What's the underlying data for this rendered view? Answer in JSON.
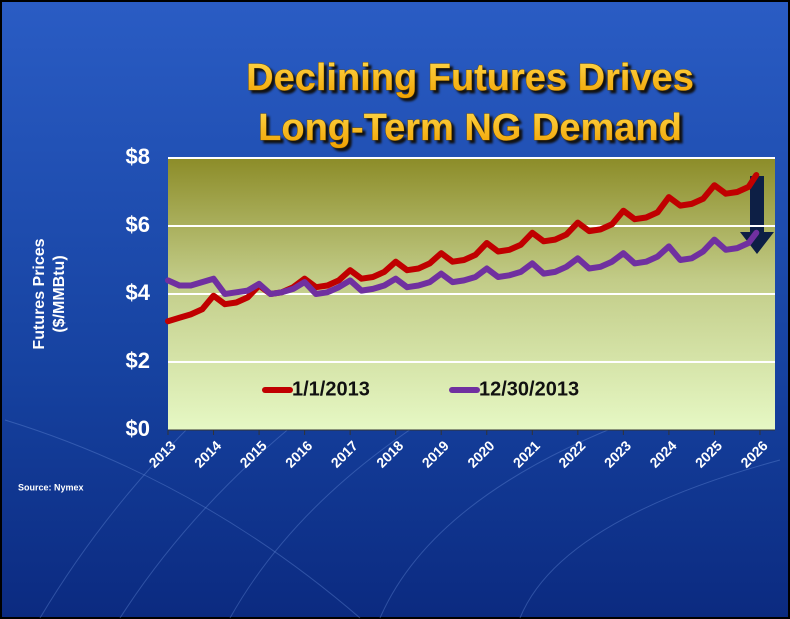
{
  "chart_data": {
    "type": "line",
    "title": [
      "Declining Futures Drives",
      "Long-Term NG Demand"
    ],
    "ylabel": [
      "Futures Prices",
      "($/MMBtu)"
    ],
    "source": "Source:  Nymex",
    "x": [
      2013,
      2013.25,
      2013.5,
      2013.75,
      2014,
      2014.25,
      2014.5,
      2014.75,
      2015,
      2015.25,
      2015.5,
      2015.75,
      2016,
      2016.25,
      2016.5,
      2016.75,
      2017,
      2017.25,
      2017.5,
      2017.75,
      2018,
      2018.25,
      2018.5,
      2018.75,
      2019,
      2019.25,
      2019.5,
      2019.75,
      2020,
      2020.25,
      2020.5,
      2020.75,
      2021,
      2021.25,
      2021.5,
      2021.75,
      2022,
      2022.25,
      2022.5,
      2022.75,
      2023,
      2023.25,
      2023.5,
      2023.75,
      2024,
      2024.25,
      2024.5,
      2024.75,
      2025,
      2025.25,
      2025.5,
      2025.75,
      2025.92
    ],
    "series": [
      {
        "name": "1/1/2013",
        "color": "#c00000",
        "values": [
          3.2,
          3.3,
          3.4,
          3.55,
          3.95,
          3.7,
          3.75,
          3.9,
          4.25,
          4.0,
          4.05,
          4.2,
          4.45,
          4.2,
          4.25,
          4.4,
          4.7,
          4.45,
          4.5,
          4.65,
          4.95,
          4.7,
          4.75,
          4.9,
          5.2,
          4.95,
          5.0,
          5.15,
          5.5,
          5.25,
          5.3,
          5.45,
          5.8,
          5.55,
          5.6,
          5.75,
          6.1,
          5.85,
          5.9,
          6.05,
          6.45,
          6.2,
          6.25,
          6.4,
          6.85,
          6.6,
          6.65,
          6.8,
          7.2,
          6.95,
          7.0,
          7.15,
          7.5
        ]
      },
      {
        "name": "12/30/2013",
        "color": "#7030a0",
        "values": [
          4.4,
          4.25,
          4.25,
          4.35,
          4.45,
          4.0,
          4.05,
          4.1,
          4.3,
          4.0,
          4.05,
          4.15,
          4.35,
          4.0,
          4.05,
          4.2,
          4.4,
          4.1,
          4.15,
          4.25,
          4.45,
          4.2,
          4.25,
          4.35,
          4.6,
          4.35,
          4.4,
          4.5,
          4.75,
          4.5,
          4.55,
          4.65,
          4.9,
          4.6,
          4.65,
          4.8,
          5.05,
          4.75,
          4.8,
          4.95,
          5.2,
          4.9,
          4.95,
          5.1,
          5.4,
          5.0,
          5.05,
          5.25,
          5.6,
          5.3,
          5.35,
          5.5,
          5.8
        ]
      }
    ],
    "xlim": [
      2013,
      2026.33
    ],
    "xticks": [
      2013,
      2014,
      2015,
      2016,
      2017,
      2018,
      2019,
      2020,
      2021,
      2022,
      2023,
      2024,
      2025,
      2026
    ],
    "ylim": [
      0,
      8
    ],
    "yticks": [
      {
        "value": 0,
        "label": "$0"
      },
      {
        "value": 2,
        "label": "$2"
      },
      {
        "value": 4,
        "label": "$4"
      },
      {
        "value": 6,
        "label": "$6"
      },
      {
        "value": 8,
        "label": "$8"
      }
    ],
    "grid": true,
    "legend": "lower center"
  }
}
